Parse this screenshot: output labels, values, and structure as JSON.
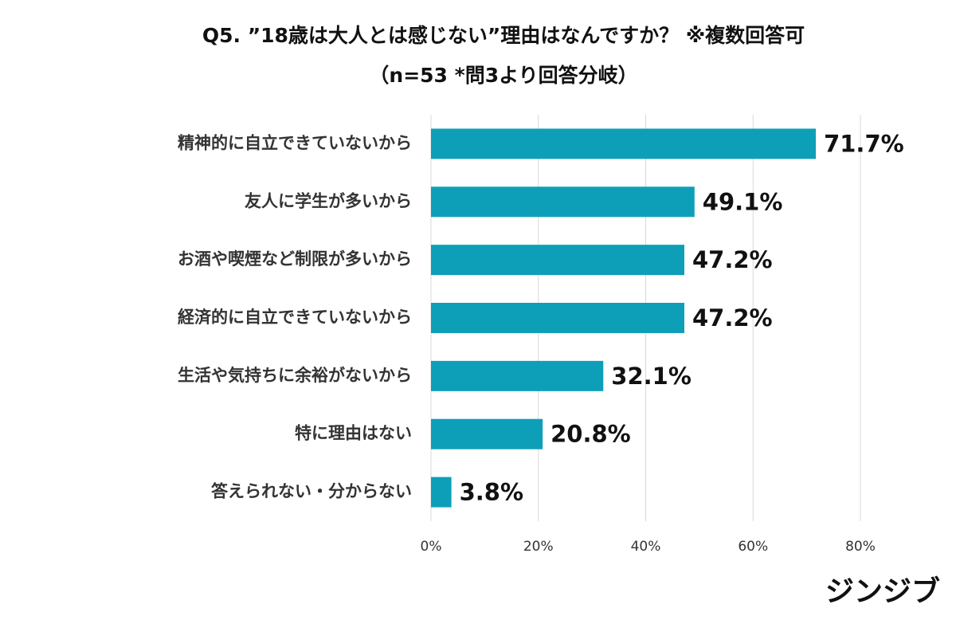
{
  "chart_data": {
    "type": "barh",
    "title": "Q5.  ”18歳は大人とは感じない”理由はなんですか？ ※複数回答可",
    "subtitle": "（n=53 *問3より回答分岐）",
    "categories": [
      "精神的に自立できていないから",
      "友人に学生が多いから",
      "お酒や喫煙など制限が多いから",
      "経済的に自立できていないから",
      "生活や気持ちに余裕がないから",
      "特に理由はない",
      "答えられない・分からない"
    ],
    "values": [
      71.7,
      49.1,
      47.2,
      47.2,
      32.1,
      20.8,
      3.8
    ],
    "value_labels": [
      "71.7%",
      "49.1%",
      "47.2%",
      "47.2%",
      "32.1%",
      "20.8%",
      "3.8%"
    ],
    "color": "#0e9fb8",
    "xlim": [
      0,
      80
    ],
    "xticks": [
      {
        "value": 0,
        "label": "0%"
      },
      {
        "value": 20,
        "label": "20%"
      },
      {
        "value": 40,
        "label": "40%"
      },
      {
        "value": 60,
        "label": "60%"
      },
      {
        "value": 80,
        "label": "80%"
      }
    ],
    "grid": true
  },
  "brand": "ジンジブ"
}
